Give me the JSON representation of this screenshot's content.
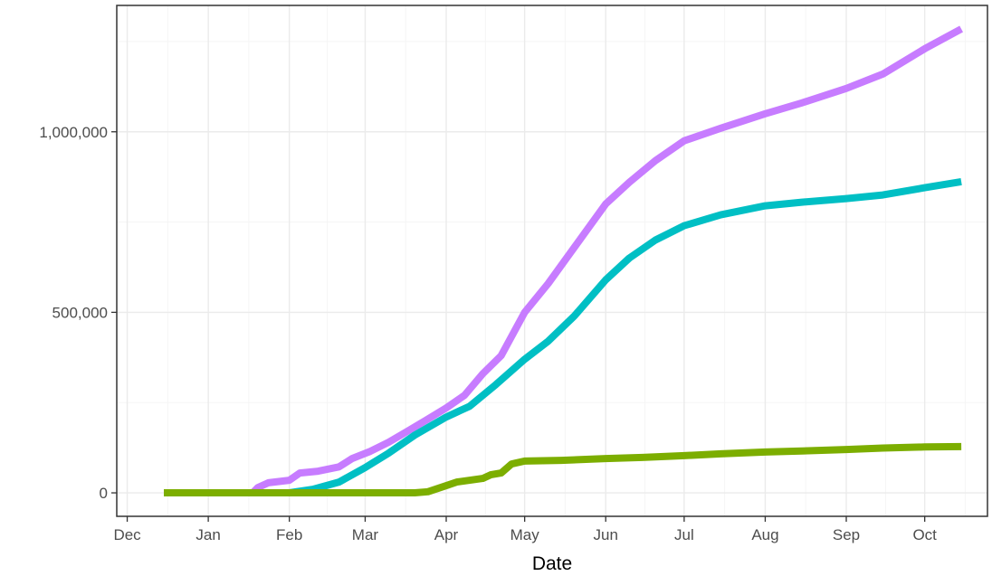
{
  "chart_data": {
    "type": "line",
    "title": "",
    "xlabel": "Date",
    "ylabel": "",
    "x_ticks": [
      "Dec",
      "Jan",
      "Feb",
      "Mar",
      "Apr",
      "May",
      "Jun",
      "Jul",
      "Aug",
      "Sep",
      "Oct"
    ],
    "x_tick_dates": [
      "2019-12-01",
      "2020-01-01",
      "2020-02-01",
      "2020-03-01",
      "2020-04-01",
      "2020-05-01",
      "2020-06-01",
      "2020-07-01",
      "2020-08-01",
      "2020-09-01",
      "2020-10-01"
    ],
    "y_ticks": [
      "0",
      "500,000",
      "1,000,000"
    ],
    "y_tick_values": [
      0,
      500000,
      1000000
    ],
    "xlim": [
      "2019-11-27",
      "2020-10-25"
    ],
    "ylim": [
      -65000,
      1350000
    ],
    "grid": true,
    "legend": "none",
    "colors": {
      "panel_border": "#333333",
      "grid_major": "#ebebeb",
      "grid_minor": "#f5f5f5",
      "tick_label": "#4d4d4d"
    },
    "series": [
      {
        "color": "#c77cff",
        "points": [
          [
            "2019-12-15",
            0
          ],
          [
            "2020-01-18",
            0
          ],
          [
            "2020-01-20",
            15000
          ],
          [
            "2020-01-24",
            28000
          ],
          [
            "2020-02-01",
            35000
          ],
          [
            "2020-02-05",
            55000
          ],
          [
            "2020-02-12",
            60000
          ],
          [
            "2020-02-20",
            72000
          ],
          [
            "2020-02-25",
            95000
          ],
          [
            "2020-03-03",
            115000
          ],
          [
            "2020-03-10",
            140000
          ],
          [
            "2020-03-17",
            170000
          ],
          [
            "2020-03-24",
            200000
          ],
          [
            "2020-04-01",
            235000
          ],
          [
            "2020-04-08",
            270000
          ],
          [
            "2020-04-15",
            330000
          ],
          [
            "2020-04-22",
            380000
          ],
          [
            "2020-05-01",
            500000
          ],
          [
            "2020-05-10",
            580000
          ],
          [
            "2020-05-20",
            680000
          ],
          [
            "2020-06-01",
            800000
          ],
          [
            "2020-06-10",
            860000
          ],
          [
            "2020-06-20",
            920000
          ],
          [
            "2020-07-01",
            975000
          ],
          [
            "2020-07-15",
            1010000
          ],
          [
            "2020-08-01",
            1050000
          ],
          [
            "2020-08-15",
            1080000
          ],
          [
            "2020-09-01",
            1120000
          ],
          [
            "2020-09-15",
            1160000
          ],
          [
            "2020-10-01",
            1230000
          ],
          [
            "2020-10-15",
            1285000
          ]
        ]
      },
      {
        "color": "#00bfc4",
        "points": [
          [
            "2019-12-15",
            0
          ],
          [
            "2020-02-01",
            0
          ],
          [
            "2020-02-10",
            10000
          ],
          [
            "2020-02-20",
            30000
          ],
          [
            "2020-03-01",
            70000
          ],
          [
            "2020-03-10",
            110000
          ],
          [
            "2020-03-20",
            160000
          ],
          [
            "2020-04-01",
            210000
          ],
          [
            "2020-04-10",
            240000
          ],
          [
            "2020-04-20",
            300000
          ],
          [
            "2020-05-01",
            370000
          ],
          [
            "2020-05-10",
            420000
          ],
          [
            "2020-05-20",
            490000
          ],
          [
            "2020-06-01",
            590000
          ],
          [
            "2020-06-10",
            650000
          ],
          [
            "2020-06-20",
            700000
          ],
          [
            "2020-07-01",
            740000
          ],
          [
            "2020-07-15",
            770000
          ],
          [
            "2020-08-01",
            795000
          ],
          [
            "2020-08-15",
            805000
          ],
          [
            "2020-09-01",
            815000
          ],
          [
            "2020-09-15",
            825000
          ],
          [
            "2020-10-01",
            845000
          ],
          [
            "2020-10-15",
            862000
          ]
        ]
      },
      {
        "color": "#7cae00",
        "points": [
          [
            "2019-12-15",
            0
          ],
          [
            "2020-03-20",
            0
          ],
          [
            "2020-03-25",
            3000
          ],
          [
            "2020-04-01",
            20000
          ],
          [
            "2020-04-05",
            30000
          ],
          [
            "2020-04-15",
            40000
          ],
          [
            "2020-04-18",
            50000
          ],
          [
            "2020-04-22",
            55000
          ],
          [
            "2020-04-26",
            80000
          ],
          [
            "2020-05-01",
            88000
          ],
          [
            "2020-05-15",
            90000
          ],
          [
            "2020-06-01",
            95000
          ],
          [
            "2020-06-15",
            98000
          ],
          [
            "2020-07-01",
            103000
          ],
          [
            "2020-07-15",
            108000
          ],
          [
            "2020-08-01",
            113000
          ],
          [
            "2020-08-15",
            116000
          ],
          [
            "2020-09-01",
            120000
          ],
          [
            "2020-09-15",
            124000
          ],
          [
            "2020-10-01",
            127000
          ],
          [
            "2020-10-15",
            128000
          ]
        ]
      }
    ]
  }
}
